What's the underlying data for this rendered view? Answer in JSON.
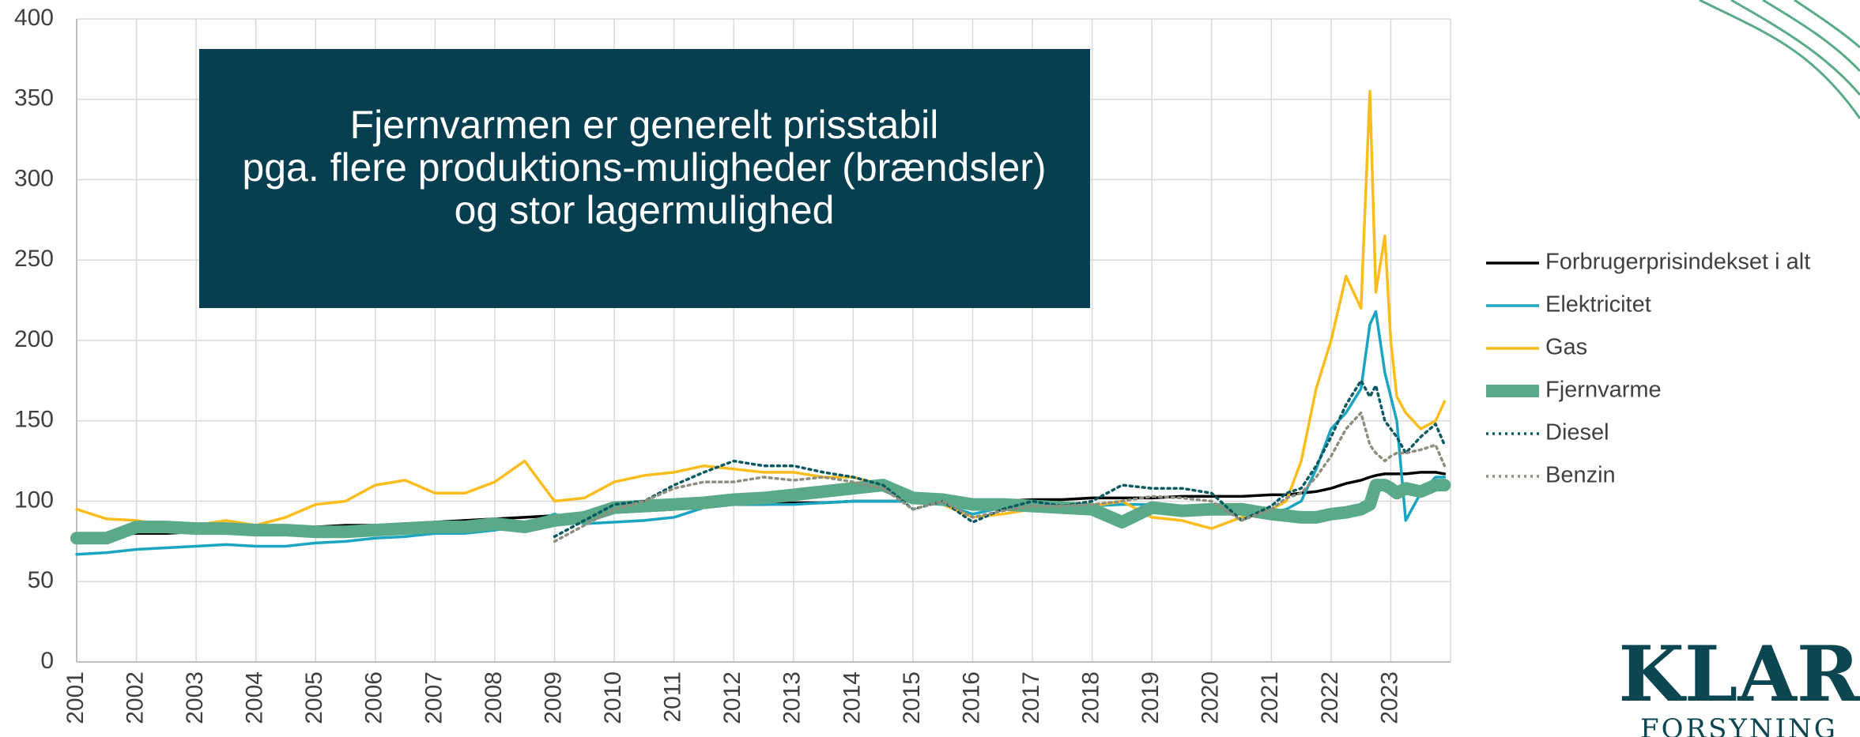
{
  "chart_data": {
    "type": "line",
    "annotation": [
      "Fjernvarmen er generelt prisstabil",
      "pga. flere produktions-muligheder (brændsler)",
      "og stor lagermulighed"
    ],
    "x": [
      2001,
      2001.5,
      2002,
      2002.5,
      2003,
      2003.5,
      2004,
      2004.5,
      2005,
      2005.5,
      2006,
      2006.5,
      2007,
      2007.5,
      2008,
      2008.5,
      2009,
      2009.5,
      2010,
      2010.5,
      2011,
      2011.5,
      2012,
      2012.5,
      2013,
      2013.5,
      2014,
      2014.5,
      2015,
      2015.5,
      2016,
      2016.5,
      2017,
      2017.5,
      2018,
      2018.5,
      2019,
      2019.5,
      2020,
      2020.5,
      2021,
      2021.25,
      2021.5,
      2021.75,
      2022,
      2022.25,
      2022.5,
      2022.65,
      2022.75,
      2022.9,
      2023,
      2023.1,
      2023.25,
      2023.5,
      2023.75,
      2023.9
    ],
    "series": [
      {
        "name": "Forbrugerprisindekset i alt",
        "color": "#000000",
        "style": "solid",
        "values": [
          78,
          79,
          80,
          80,
          81,
          81,
          82,
          83,
          84,
          85,
          85,
          86,
          87,
          88,
          89,
          90,
          91,
          92,
          93,
          94,
          95,
          97,
          98,
          98,
          99,
          99,
          100,
          100,
          100,
          100,
          100,
          100,
          101,
          101,
          102,
          102,
          102,
          103,
          103,
          103,
          104,
          104,
          105,
          106,
          108,
          111,
          113,
          115,
          116,
          117,
          117,
          117,
          117,
          118,
          118,
          117
        ]
      },
      {
        "name": "Elektricitet",
        "color": "#1ba5c0",
        "style": "solid",
        "values": [
          67,
          68,
          70,
          71,
          72,
          73,
          72,
          72,
          74,
          75,
          77,
          78,
          80,
          80,
          82,
          85,
          92,
          86,
          87,
          88,
          90,
          96,
          98,
          98,
          98,
          99,
          100,
          100,
          100,
          98,
          92,
          96,
          100,
          99,
          97,
          98,
          98,
          97,
          92,
          93,
          93,
          95,
          100,
          120,
          145,
          155,
          170,
          210,
          218,
          180,
          165,
          150,
          88,
          105,
          115,
          115
        ]
      },
      {
        "name": "Gas",
        "color": "#fbbd1e",
        "style": "solid",
        "values": [
          95,
          89,
          88,
          85,
          85,
          88,
          85,
          90,
          98,
          100,
          110,
          113,
          105,
          105,
          112,
          125,
          100,
          102,
          112,
          116,
          118,
          122,
          120,
          118,
          118,
          115,
          115,
          110,
          102,
          98,
          90,
          92,
          95,
          95,
          97,
          100,
          90,
          88,
          83,
          90,
          95,
          100,
          125,
          170,
          200,
          240,
          220,
          355,
          230,
          265,
          200,
          165,
          155,
          145,
          150,
          162
        ]
      },
      {
        "name": "Fjernvarme",
        "color": "#5aaa8a",
        "style": "thick",
        "values": [
          77,
          77,
          84,
          84,
          83,
          83,
          82,
          82,
          81,
          81,
          82,
          83,
          84,
          84,
          86,
          84,
          88,
          90,
          96,
          97,
          98,
          99,
          101,
          102,
          104,
          106,
          108,
          110,
          102,
          101,
          98,
          98,
          97,
          96,
          95,
          87,
          96,
          94,
          95,
          95,
          92,
          91,
          90,
          90,
          92,
          93,
          95,
          98,
          110,
          110,
          108,
          105,
          108,
          106,
          110,
          110
        ]
      },
      {
        "name": "Diesel",
        "color": "#0b5a62",
        "style": "dotted",
        "values": [
          null,
          null,
          null,
          null,
          null,
          null,
          null,
          null,
          null,
          null,
          null,
          null,
          null,
          null,
          null,
          null,
          78,
          88,
          98,
          100,
          110,
          118,
          125,
          122,
          122,
          118,
          115,
          110,
          95,
          100,
          87,
          95,
          100,
          97,
          100,
          110,
          108,
          108,
          105,
          88,
          97,
          105,
          108,
          122,
          140,
          160,
          175,
          165,
          172,
          150,
          145,
          140,
          130,
          140,
          148,
          135
        ]
      },
      {
        "name": "Benzin",
        "color": "#8f8f80",
        "style": "dotted",
        "values": [
          null,
          null,
          null,
          null,
          null,
          null,
          null,
          null,
          null,
          null,
          null,
          null,
          null,
          null,
          null,
          null,
          75,
          85,
          95,
          100,
          108,
          112,
          112,
          115,
          113,
          115,
          112,
          108,
          95,
          100,
          90,
          94,
          97,
          97,
          98,
          100,
          103,
          102,
          100,
          88,
          95,
          102,
          105,
          115,
          128,
          145,
          155,
          135,
          130,
          125,
          128,
          130,
          130,
          132,
          135,
          122
        ]
      }
    ],
    "xlim": [
      2001,
      2024
    ],
    "xticks": [
      2001,
      2002,
      2003,
      2004,
      2005,
      2006,
      2007,
      2008,
      2009,
      2010,
      2011,
      2012,
      2013,
      2014,
      2015,
      2016,
      2017,
      2018,
      2019,
      2020,
      2021,
      2022,
      2023
    ],
    "ylim": [
      0,
      400
    ],
    "yticks": [
      0,
      50,
      100,
      150,
      200,
      250,
      300,
      350,
      400
    ],
    "grid": true,
    "legend": "right"
  },
  "logo": {
    "name": "KLAR",
    "sub": "FORSYNING"
  }
}
